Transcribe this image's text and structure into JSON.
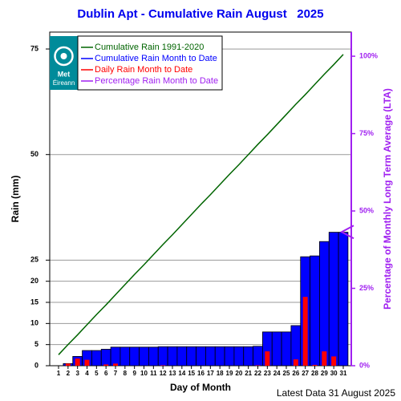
{
  "chart_data": {
    "type": "bar",
    "title": "Dublin Apt - Cumulative Rain August   2025",
    "ylabel": "Rain (mm)",
    "y2label": "Percentage  of Monthly Long Term Average (LTA)",
    "xlabel": "Day of Month",
    "footer": "Latest Data 31 August 2025",
    "logo_text": [
      "Met",
      "Éireann"
    ],
    "categories": [
      "1",
      "2",
      "3",
      "4",
      "5",
      "6",
      "7",
      "8",
      "9",
      "10",
      "11",
      "12",
      "13",
      "14",
      "15",
      "16",
      "17",
      "18",
      "19",
      "20",
      "21",
      "22",
      "23",
      "24",
      "25",
      "26",
      "27",
      "28",
      "29",
      "30",
      "31"
    ],
    "ylim": [
      0,
      79
    ],
    "yticks": [
      0,
      5,
      10,
      15,
      20,
      25,
      50,
      75
    ],
    "y2lim": [
      0,
      107.8
    ],
    "y2ticks": [
      {
        "value": 0,
        "label": "0%"
      },
      {
        "value": 25,
        "label": "25%"
      },
      {
        "value": 50,
        "label": "50%"
      },
      {
        "value": 75,
        "label": "75%"
      },
      {
        "value": 100,
        "label": "100%"
      }
    ],
    "grid": true,
    "series": [
      {
        "name": "Cumulative Rain 1991-2020",
        "color": "#006400",
        "kind": "line",
        "values": [
          2.6,
          5.0,
          7.3,
          9.7,
          12.1,
          14.4,
          16.8,
          19.2,
          21.6,
          23.9,
          26.3,
          28.7,
          31.0,
          33.4,
          35.8,
          38.2,
          40.5,
          42.9,
          45.3,
          47.6,
          50.0,
          52.4,
          54.7,
          57.1,
          59.5,
          61.9,
          64.2,
          66.6,
          69.0,
          71.3,
          73.7
        ]
      },
      {
        "name": "Cumulative Rain Month to Date",
        "color": "#0000ff",
        "kind": "bar",
        "values": [
          0,
          0.5,
          2.2,
          3.6,
          3.6,
          3.9,
          4.4,
          4.4,
          4.4,
          4.4,
          4.4,
          4.5,
          4.5,
          4.5,
          4.5,
          4.5,
          4.5,
          4.5,
          4.5,
          4.5,
          4.5,
          4.6,
          8.0,
          8.0,
          8.0,
          9.5,
          25.8,
          26.0,
          29.4,
          31.6,
          31.6
        ]
      },
      {
        "name": "Daily Rain Month to Date",
        "color": "#ff0000",
        "kind": "narrow-bar",
        "values": [
          0,
          0.5,
          1.7,
          1.4,
          0,
          0.3,
          0.5,
          0,
          0,
          0,
          0,
          0.1,
          0,
          0,
          0,
          0,
          0,
          0,
          0,
          0,
          0,
          0.1,
          3.4,
          0,
          0,
          1.5,
          16.3,
          0.2,
          3.4,
          2.2,
          0
        ]
      },
      {
        "name": "Percentage Rain Month to Date",
        "color": "#a020f0",
        "kind": "marker",
        "axis": "y2",
        "value": 43.2
      }
    ]
  }
}
